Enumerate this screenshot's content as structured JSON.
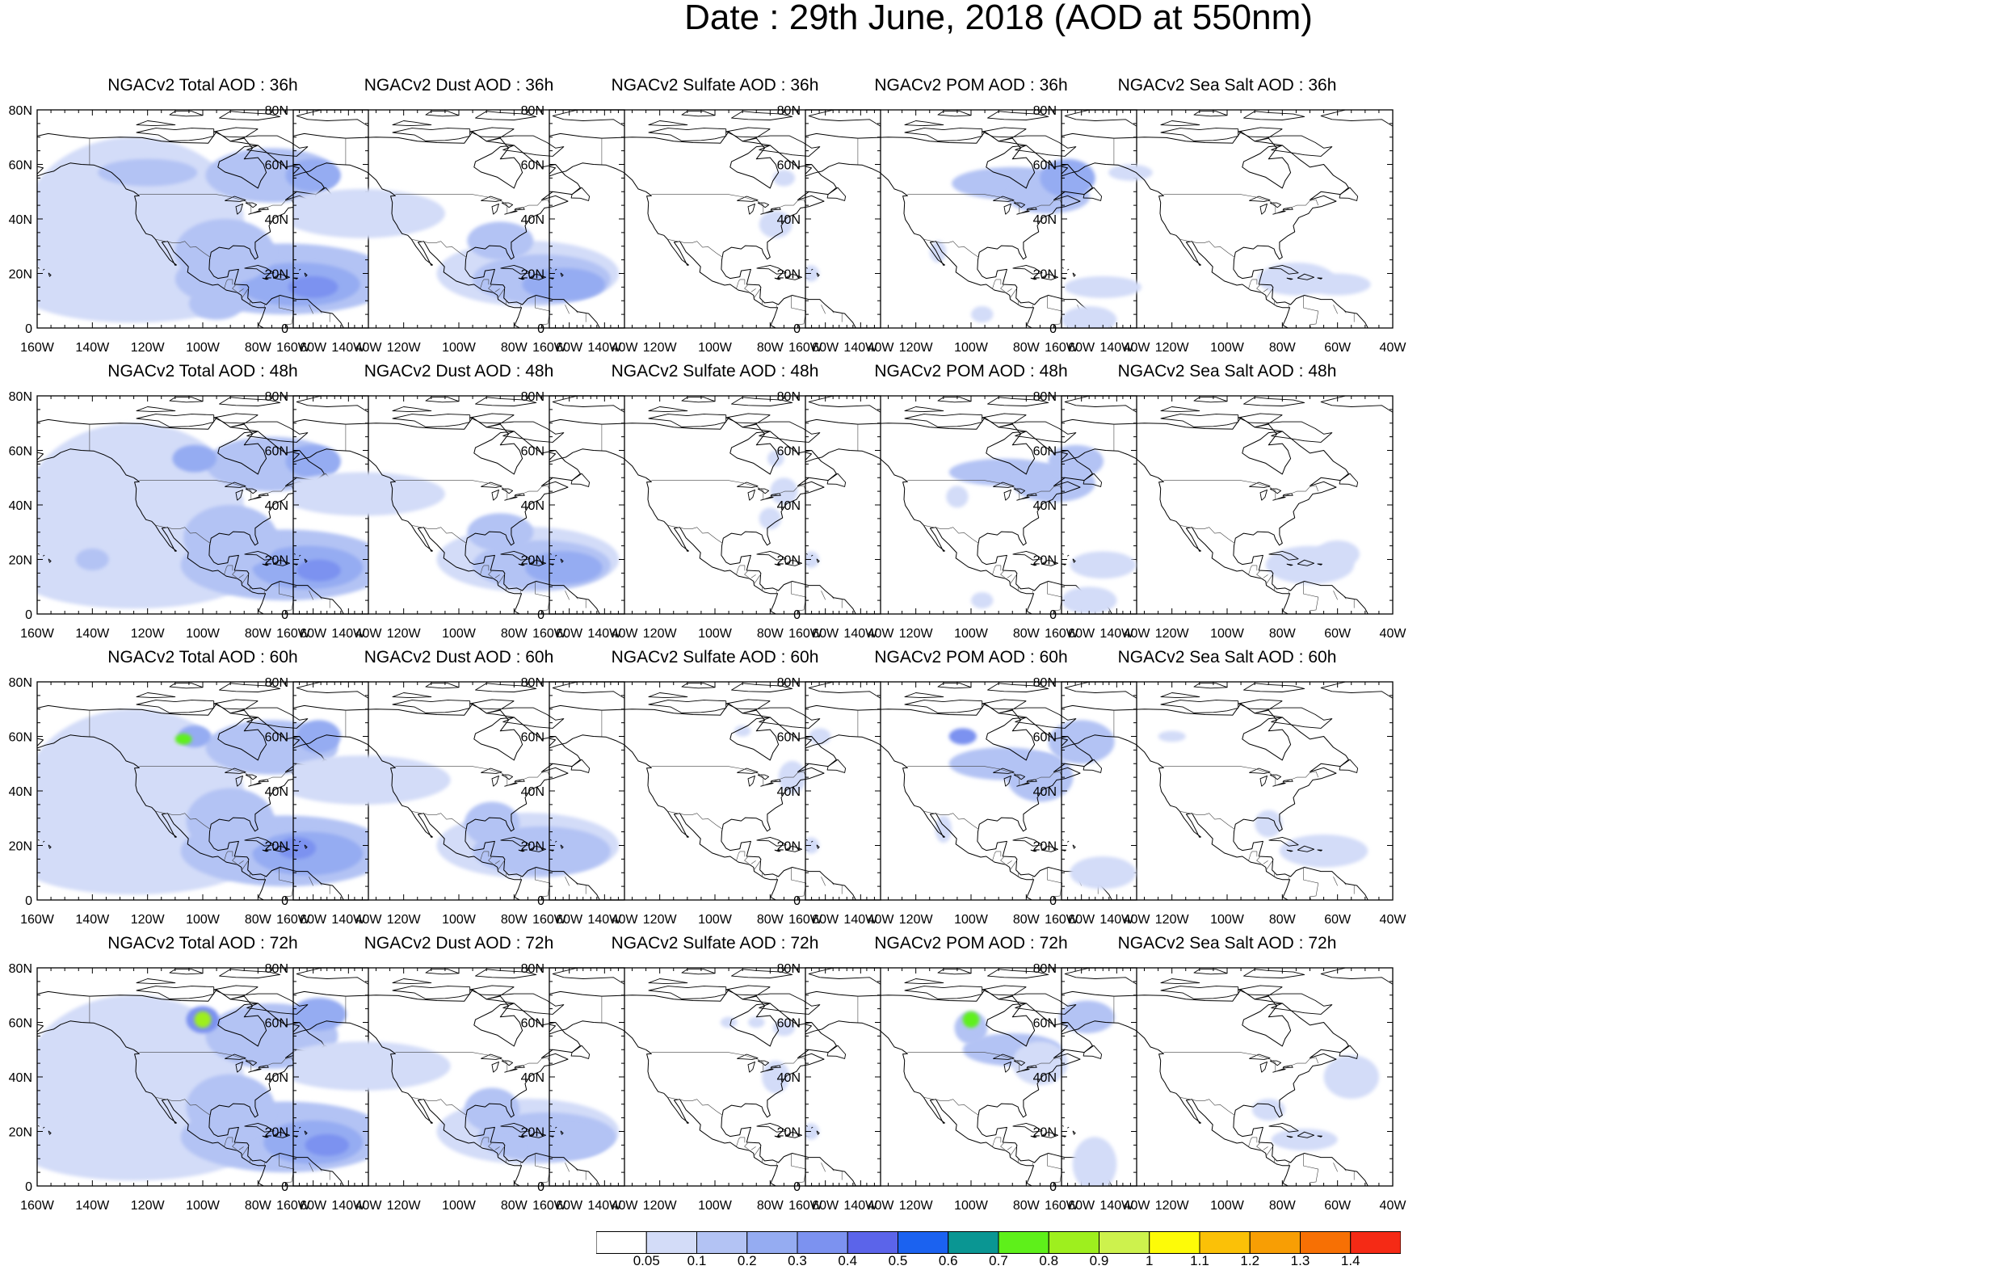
{
  "title": "Date : 29th June, 2018 (AOD at 550nm)",
  "panels": [
    {
      "title": "NGACv2 Total AOD : 36h",
      "species": "total",
      "hour": 36
    },
    {
      "title": "NGACv2 Dust AOD : 36h",
      "species": "dust",
      "hour": 36
    },
    {
      "title": "NGACv2 Sulfate AOD : 36h",
      "species": "sulfate",
      "hour": 36
    },
    {
      "title": "NGACv2 POM AOD : 36h",
      "species": "pom",
      "hour": 36
    },
    {
      "title": "NGACv2 Sea Salt AOD : 36h",
      "species": "seasalt",
      "hour": 36
    },
    {
      "title": "NGACv2 Total AOD : 48h",
      "species": "total",
      "hour": 48
    },
    {
      "title": "NGACv2 Dust AOD : 48h",
      "species": "dust",
      "hour": 48
    },
    {
      "title": "NGACv2 Sulfate AOD : 48h",
      "species": "sulfate",
      "hour": 48
    },
    {
      "title": "NGACv2 POM AOD : 48h",
      "species": "pom",
      "hour": 48
    },
    {
      "title": "NGACv2 Sea Salt AOD : 48h",
      "species": "seasalt",
      "hour": 48
    },
    {
      "title": "NGACv2 Total AOD : 60h",
      "species": "total",
      "hour": 60
    },
    {
      "title": "NGACv2 Dust AOD : 60h",
      "species": "dust",
      "hour": 60
    },
    {
      "title": "NGACv2 Sulfate AOD : 60h",
      "species": "sulfate",
      "hour": 60
    },
    {
      "title": "NGACv2 POM AOD : 60h",
      "species": "pom",
      "hour": 60
    },
    {
      "title": "NGACv2 Sea Salt AOD : 60h",
      "species": "seasalt",
      "hour": 60
    },
    {
      "title": "NGACv2 Total AOD : 72h",
      "species": "total",
      "hour": 72
    },
    {
      "title": "NGACv2 Dust AOD : 72h",
      "species": "dust",
      "hour": 72
    },
    {
      "title": "NGACv2 Sulfate AOD : 72h",
      "species": "sulfate",
      "hour": 72
    },
    {
      "title": "NGACv2 POM AOD : 72h",
      "species": "pom",
      "hour": 72
    },
    {
      "title": "NGACv2 Sea Salt  AOD : 72h",
      "species": "seasalt",
      "hour": 72
    }
  ],
  "lat_ticks": [
    "80N",
    "60N",
    "40N",
    "20N",
    "0"
  ],
  "lon_ticks": [
    "160W",
    "140W",
    "120W",
    "100W",
    "80W",
    "60W",
    "40W"
  ],
  "colorbar": {
    "colors": [
      "#ffffff",
      "#d3dcf8",
      "#b3c3f4",
      "#95acf2",
      "#7c92f0",
      "#5b64ea",
      "#1b62f0",
      "#0a9693",
      "#5ef01a",
      "#9eef1e",
      "#cdf24d",
      "#fdfb08",
      "#fbc107",
      "#f89e04",
      "#f77004",
      "#f52a15"
    ],
    "labels": [
      "0.05",
      "0.1",
      "0.2",
      "0.3",
      "0.4",
      "0.5",
      "0.6",
      "0.7",
      "0.8",
      "0.9",
      "1",
      "1.1",
      "1.2",
      "1.3",
      "1.4"
    ]
  }
}
